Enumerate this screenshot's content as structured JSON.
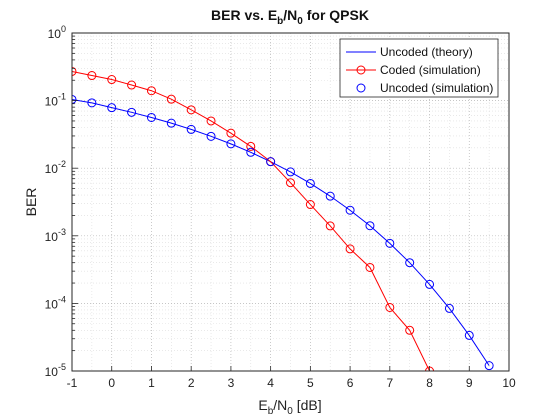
{
  "chart_data": {
    "type": "line",
    "title": {
      "pre": "BER vs. E",
      "sub1": "b",
      "mid": "/N",
      "sub2": "0",
      "post": " for QPSK"
    },
    "xlabel": {
      "pre": "E",
      "sub1": "b",
      "mid": "/N",
      "sub2": "0",
      "post": " [dB]"
    },
    "ylabel": "BER",
    "xlim": [
      -1,
      10
    ],
    "ylim": [
      1e-05,
      1
    ],
    "yscale": "log",
    "grid": true,
    "minor_grid": true,
    "legend_position": "top-right",
    "x_ticks": [
      -1,
      0,
      1,
      2,
      3,
      4,
      5,
      6,
      7,
      8,
      9,
      10
    ],
    "x_tick_labels": [
      "-1",
      "0",
      "1",
      "2",
      "3",
      "4",
      "5",
      "6",
      "7",
      "8",
      "9",
      "10"
    ],
    "y_ticks": [
      {
        "value": 1,
        "base": "10",
        "exp": "0"
      },
      {
        "value": 0.1,
        "base": "10",
        "exp": "-1"
      },
      {
        "value": 0.01,
        "base": "10",
        "exp": "-2"
      },
      {
        "value": 0.001,
        "base": "10",
        "exp": "-3"
      },
      {
        "value": 0.0001,
        "base": "10",
        "exp": "-4"
      },
      {
        "value": 1e-05,
        "base": "10",
        "exp": "-5"
      }
    ],
    "colors": {
      "blue": "#0000ff",
      "red": "#ff0000"
    },
    "series": [
      {
        "name": "Uncoded (theory)",
        "style": "line",
        "color": "#0000ff",
        "x": [
          -1,
          -0.5,
          0,
          0.5,
          1,
          1.5,
          2,
          2.5,
          3,
          3.5,
          4,
          4.5,
          5,
          5.5,
          6,
          6.5,
          7,
          7.5,
          8,
          8.5,
          9,
          9.5
        ],
        "y": [
          0.104,
          0.0926,
          0.0786,
          0.0671,
          0.0563,
          0.0464,
          0.0375,
          0.0296,
          0.0229,
          0.0172,
          0.0125,
          0.00882,
          0.00595,
          0.00386,
          0.00239,
          0.00141,
          0.000773,
          0.0004,
          0.000191,
          8.43e-05,
          3.36e-05,
          1.2e-05
        ]
      },
      {
        "name": "Coded (simulation)",
        "style": "line-marker",
        "color": "#ff0000",
        "x": [
          -1,
          -0.5,
          0,
          0.5,
          1,
          1.5,
          2,
          2.5,
          3,
          3.5,
          4,
          4.5,
          5,
          5.5,
          6,
          6.5,
          7,
          7.5,
          8
        ],
        "y": [
          0.27,
          0.235,
          0.205,
          0.17,
          0.14,
          0.105,
          0.073,
          0.05,
          0.033,
          0.021,
          0.0125,
          0.0061,
          0.0029,
          0.0014,
          0.00064,
          0.00034,
          8.7e-05,
          4e-05,
          1e-05
        ]
      },
      {
        "name": "Uncoded (simulation)",
        "style": "marker",
        "color": "#0000ff",
        "x": [
          -1,
          -0.5,
          0,
          0.5,
          1,
          1.5,
          2,
          2.5,
          3,
          3.5,
          4,
          4.5,
          5,
          5.5,
          6,
          6.5,
          7,
          7.5,
          8,
          8.5,
          9,
          9.5
        ],
        "y": [
          0.104,
          0.0926,
          0.0786,
          0.0671,
          0.0563,
          0.0464,
          0.0375,
          0.0296,
          0.0229,
          0.0172,
          0.0125,
          0.00882,
          0.00595,
          0.00386,
          0.00239,
          0.00141,
          0.000773,
          0.0004,
          0.000191,
          8.43e-05,
          3.36e-05,
          1.2e-05
        ]
      }
    ]
  }
}
